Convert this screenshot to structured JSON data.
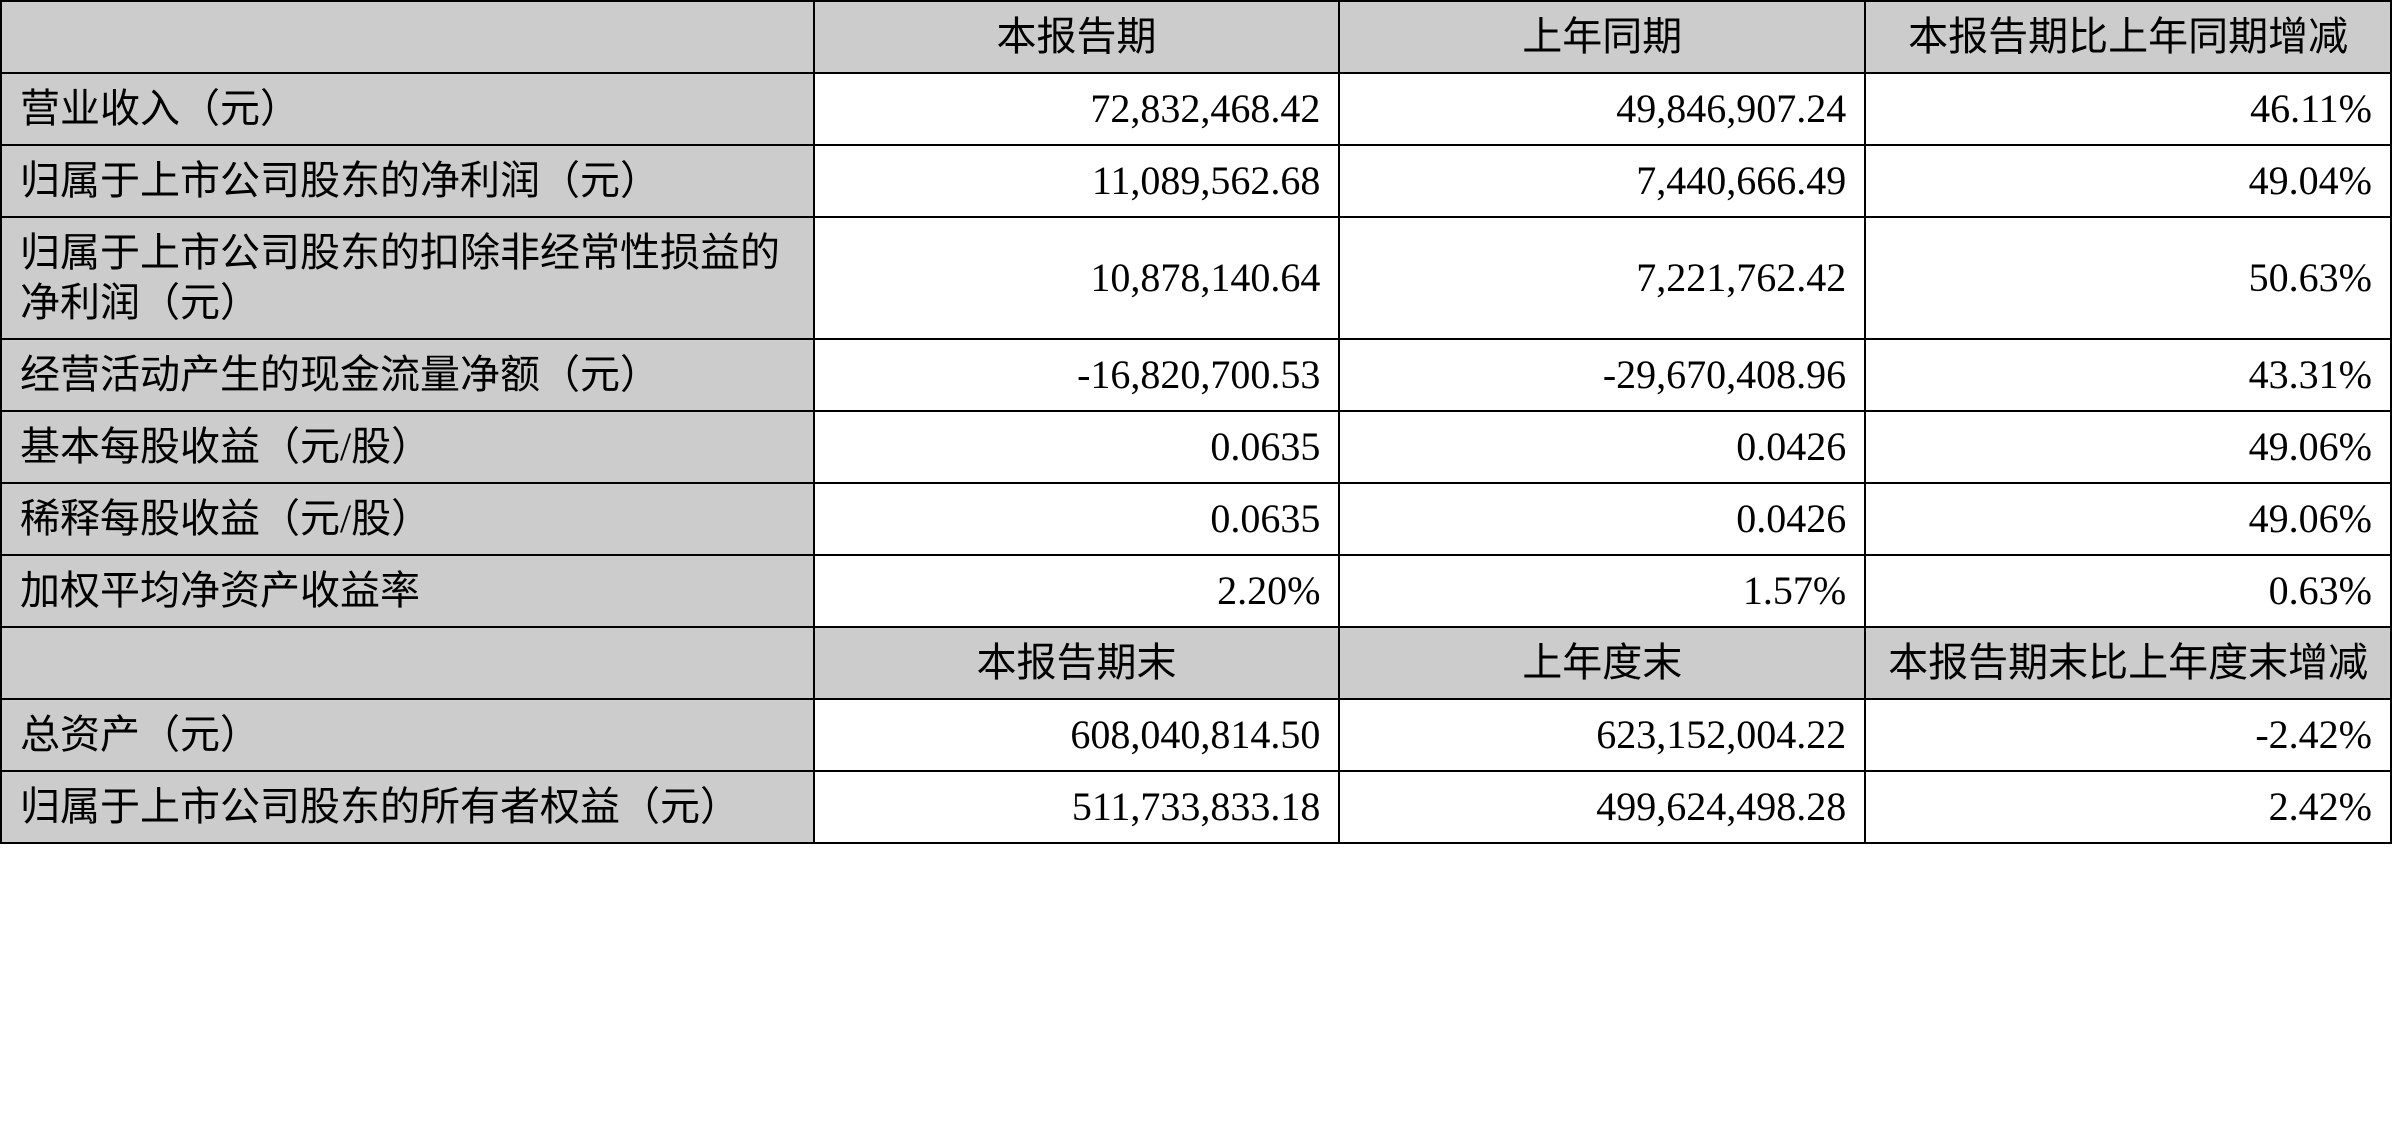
{
  "table": {
    "type": "table",
    "border_color": "#000000",
    "header_bg": "#cccccc",
    "cell_bg": "#ffffff",
    "font_size_pt": 30,
    "font_family": "SimSun",
    "col_widths_pct": [
      34,
      22,
      22,
      22
    ],
    "alignments": [
      "left",
      "right",
      "right",
      "right"
    ],
    "header_alignment": "center",
    "section1": {
      "headers": [
        "",
        "本报告期",
        "上年同期",
        "本报告期比上年同期增减"
      ],
      "rows": [
        {
          "label": "营业收入（元）",
          "current": "72,832,468.42",
          "prior": "49,846,907.24",
          "change": "46.11%"
        },
        {
          "label": "归属于上市公司股东的净利润（元）",
          "current": "11,089,562.68",
          "prior": "7,440,666.49",
          "change": "49.04%"
        },
        {
          "label": "归属于上市公司股东的扣除非经常性损益的净利润（元）",
          "current": "10,878,140.64",
          "prior": "7,221,762.42",
          "change": "50.63%"
        },
        {
          "label": "经营活动产生的现金流量净额（元）",
          "current": "-16,820,700.53",
          "prior": "-29,670,408.96",
          "change": "43.31%"
        },
        {
          "label": "基本每股收益（元/股）",
          "current": "0.0635",
          "prior": "0.0426",
          "change": "49.06%"
        },
        {
          "label": "稀释每股收益（元/股）",
          "current": "0.0635",
          "prior": "0.0426",
          "change": "49.06%"
        },
        {
          "label": "加权平均净资产收益率",
          "current": "2.20%",
          "prior": "1.57%",
          "change": "0.63%"
        }
      ]
    },
    "section2": {
      "headers": [
        "",
        "本报告期末",
        "上年度末",
        "本报告期末比上年度末增减"
      ],
      "rows": [
        {
          "label": "总资产（元）",
          "current": "608,040,814.50",
          "prior": "623,152,004.22",
          "change": "-2.42%"
        },
        {
          "label": "归属于上市公司股东的所有者权益（元）",
          "current": "511,733,833.18",
          "prior": "499,624,498.28",
          "change": "2.42%"
        }
      ]
    }
  }
}
